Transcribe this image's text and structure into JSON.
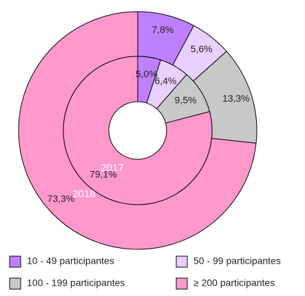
{
  "chart_data": {
    "type": "donut",
    "categories": [
      "10 - 49 participantes",
      "50 - 99 participantes",
      "100 - 199 participantes",
      "≥ 200 participantes"
    ],
    "colors": [
      "#bf80ff",
      "#e8d0ff",
      "#c8c8c8",
      "#ff99cc"
    ],
    "series": [
      {
        "name": "2018",
        "values": [
          7.8,
          5.6,
          13.3,
          73.3
        ],
        "value_labels": [
          "7,8%",
          "5,6%",
          "13,3%",
          "73,3%"
        ]
      },
      {
        "name": "2017",
        "values": [
          5.0,
          6.4,
          9.5,
          79.1
        ],
        "value_labels": [
          "5,0%",
          "6,4%",
          "9,5%",
          "79,1%"
        ]
      }
    ]
  }
}
